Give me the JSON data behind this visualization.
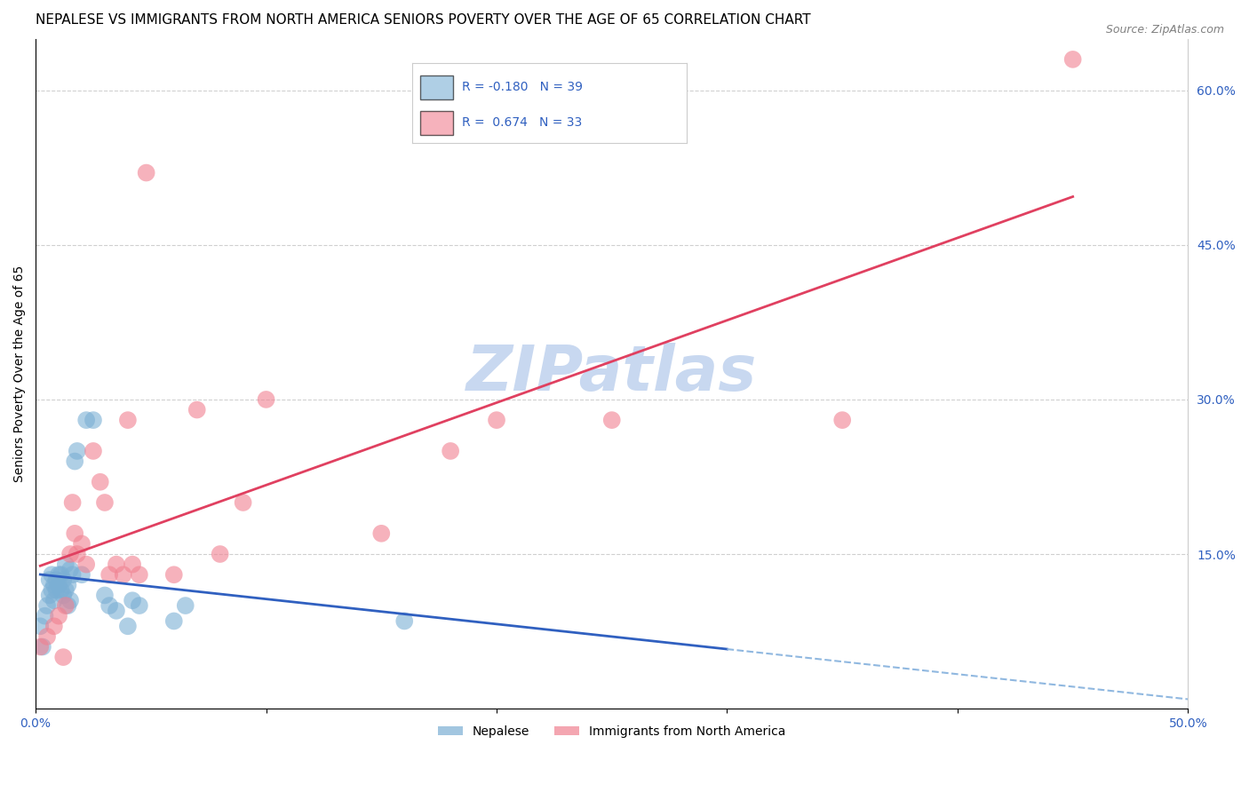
{
  "title": "NEPALESE VS IMMIGRANTS FROM NORTH AMERICA SENIORS POVERTY OVER THE AGE OF 65 CORRELATION CHART",
  "source": "Source: ZipAtlas.com",
  "ylabel": "Seniors Poverty Over the Age of 65",
  "xlim": [
    0.0,
    0.5
  ],
  "ylim": [
    0.0,
    0.65
  ],
  "x_tick_positions": [
    0.0,
    0.1,
    0.2,
    0.3,
    0.4,
    0.5
  ],
  "x_tick_labels": [
    "0.0%",
    "",
    "",
    "",
    "",
    "50.0%"
  ],
  "y_tick_labels_right": [
    "",
    "15.0%",
    "30.0%",
    "45.0%",
    "60.0%"
  ],
  "y_ticks_right": [
    0.0,
    0.15,
    0.3,
    0.45,
    0.6
  ],
  "nepalese_color": "#7bafd4",
  "northamerica_color": "#f08090",
  "nepalese_line_color": "#3060c0",
  "northamerica_line_color": "#e04060",
  "nepalese_dashed_color": "#90b8e0",
  "watermark": "ZIPatlas",
  "watermark_color": "#c8d8f0",
  "nepalese_x": [
    0.002,
    0.003,
    0.004,
    0.005,
    0.006,
    0.006,
    0.007,
    0.007,
    0.008,
    0.008,
    0.009,
    0.009,
    0.01,
    0.01,
    0.011,
    0.011,
    0.012,
    0.012,
    0.013,
    0.013,
    0.014,
    0.014,
    0.015,
    0.015,
    0.016,
    0.017,
    0.018,
    0.02,
    0.022,
    0.025,
    0.03,
    0.032,
    0.035,
    0.04,
    0.042,
    0.045,
    0.06,
    0.065,
    0.16
  ],
  "nepalese_y": [
    0.08,
    0.06,
    0.09,
    0.1,
    0.11,
    0.125,
    0.115,
    0.13,
    0.12,
    0.105,
    0.115,
    0.125,
    0.13,
    0.12,
    0.115,
    0.13,
    0.125,
    0.11,
    0.14,
    0.115,
    0.12,
    0.1,
    0.135,
    0.105,
    0.13,
    0.24,
    0.25,
    0.13,
    0.28,
    0.28,
    0.11,
    0.1,
    0.095,
    0.08,
    0.105,
    0.1,
    0.085,
    0.1,
    0.085
  ],
  "northamerica_x": [
    0.002,
    0.005,
    0.008,
    0.01,
    0.012,
    0.013,
    0.015,
    0.016,
    0.017,
    0.018,
    0.02,
    0.022,
    0.025,
    0.028,
    0.03,
    0.032,
    0.035,
    0.038,
    0.04,
    0.042,
    0.045,
    0.048,
    0.06,
    0.07,
    0.08,
    0.09,
    0.1,
    0.15,
    0.18,
    0.2,
    0.25,
    0.35,
    0.45
  ],
  "northamerica_y": [
    0.06,
    0.07,
    0.08,
    0.09,
    0.05,
    0.1,
    0.15,
    0.2,
    0.17,
    0.15,
    0.16,
    0.14,
    0.25,
    0.22,
    0.2,
    0.13,
    0.14,
    0.13,
    0.28,
    0.14,
    0.13,
    0.52,
    0.13,
    0.29,
    0.15,
    0.2,
    0.3,
    0.17,
    0.25,
    0.28,
    0.28,
    0.28,
    0.63
  ],
  "grid_color": "#d0d0d0",
  "background_color": "#ffffff",
  "title_fontsize": 11,
  "axis_label_fontsize": 10,
  "tick_fontsize": 10,
  "text_color": "#3060c0",
  "legend_label1": "R = -0.180   N = 39",
  "legend_label2": "R =  0.674   N = 33",
  "bottom_legend_label1": "Nepalese",
  "bottom_legend_label2": "Immigrants from North America"
}
